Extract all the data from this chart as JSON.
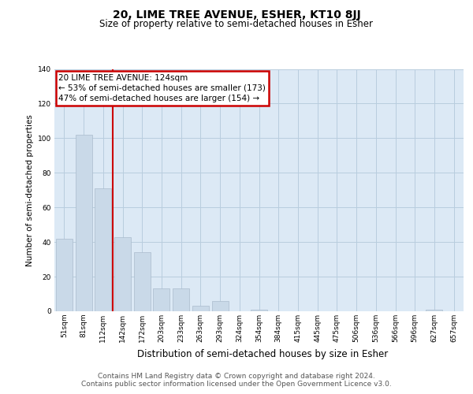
{
  "title": "20, LIME TREE AVENUE, ESHER, KT10 8JJ",
  "subtitle": "Size of property relative to semi-detached houses in Esher",
  "xlabel": "Distribution of semi-detached houses by size in Esher",
  "ylabel": "Number of semi-detached properties",
  "bar_labels": [
    "51sqm",
    "81sqm",
    "112sqm",
    "142sqm",
    "172sqm",
    "203sqm",
    "233sqm",
    "263sqm",
    "293sqm",
    "324sqm",
    "354sqm",
    "384sqm",
    "415sqm",
    "445sqm",
    "475sqm",
    "506sqm",
    "536sqm",
    "566sqm",
    "596sqm",
    "627sqm",
    "657sqm"
  ],
  "bar_values": [
    42,
    102,
    71,
    43,
    34,
    13,
    13,
    3,
    6,
    0,
    1,
    0,
    0,
    0,
    0,
    0,
    0,
    0,
    0,
    1,
    0
  ],
  "bar_color": "#c9d9e8",
  "bar_edge_color": "#aabccc",
  "vline_pos": 2.5,
  "vline_color": "#cc0000",
  "annotation_line1": "20 LIME TREE AVENUE: 124sqm",
  "annotation_line2": "← 53% of semi-detached houses are smaller (173)",
  "annotation_line3": "47% of semi-detached houses are larger (154) →",
  "annotation_box_color": "#cc0000",
  "annotation_box_facecolor": "white",
  "ylim": [
    0,
    140
  ],
  "yticks": [
    0,
    20,
    40,
    60,
    80,
    100,
    120,
    140
  ],
  "grid_color": "#b8cdd e",
  "background_color": "#dce9f5",
  "footer_line1": "Contains HM Land Registry data © Crown copyright and database right 2024.",
  "footer_line2": "Contains public sector information licensed under the Open Government Licence v3.0.",
  "title_fontsize": 10,
  "subtitle_fontsize": 8.5,
  "xlabel_fontsize": 8.5,
  "ylabel_fontsize": 7.5,
  "tick_fontsize": 6.5,
  "annotation_fontsize": 7.5,
  "footer_fontsize": 6.5
}
